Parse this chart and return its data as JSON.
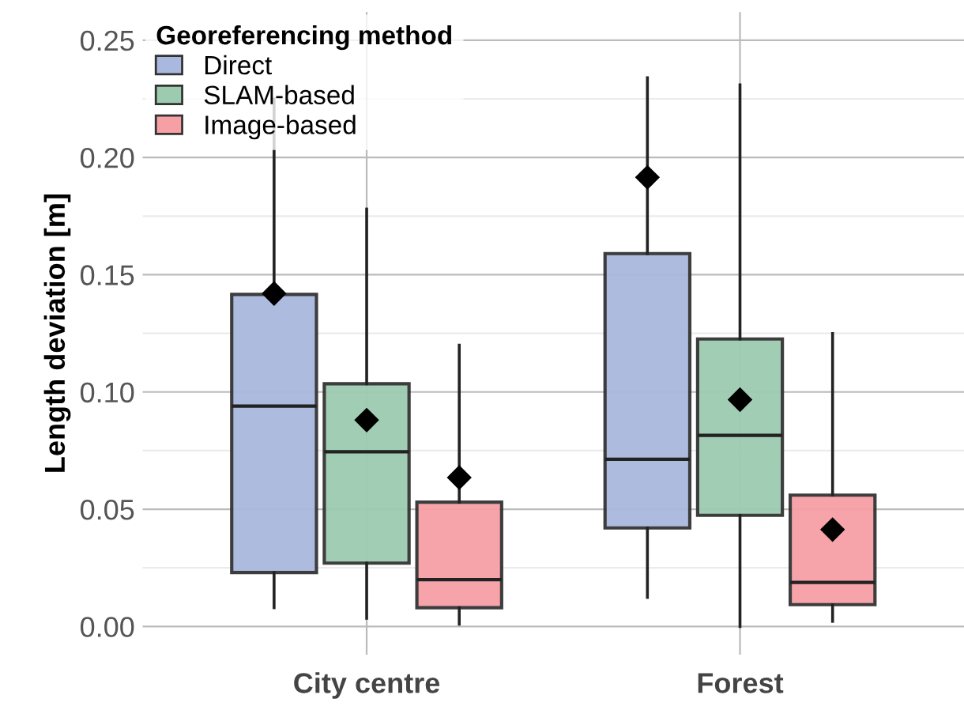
{
  "chart_data": {
    "type": "box",
    "ylabel": "Length deviation [m]",
    "legend_title": "Georeferencing method",
    "categories": [
      "City centre",
      "Forest"
    ],
    "ylim": [
      -0.012,
      0.262
    ],
    "yticks": [
      {
        "value": 0,
        "label": "0.00"
      },
      {
        "value": 0.05,
        "label": "0.05"
      },
      {
        "value": 0.1,
        "label": "0.10"
      },
      {
        "value": 0.15,
        "label": "0.15"
      },
      {
        "value": 0.2,
        "label": "0.20"
      },
      {
        "value": 0.25,
        "label": "0.25"
      }
    ],
    "grid": true,
    "legend": "top left",
    "marker": "diamond",
    "series": [
      {
        "name": "Direct",
        "color": "#a9b8de",
        "boxes": [
          {
            "low": 0.008,
            "q1": 0.023,
            "median": 0.094,
            "q3": 0.1416,
            "high": 0.225,
            "mean": 0.142
          },
          {
            "low": 0.0124,
            "q1": 0.042,
            "median": 0.0713,
            "q3": 0.159,
            "high": 0.234,
            "mean": 0.1915
          }
        ]
      },
      {
        "name": "SLAM-based",
        "color": "#9ccbb0",
        "boxes": [
          {
            "low": 0.0035,
            "q1": 0.027,
            "median": 0.0745,
            "q3": 0.1035,
            "high": 0.178,
            "mean": 0.088
          },
          {
            "low": 0.0,
            "q1": 0.0474,
            "median": 0.0815,
            "q3": 0.1226,
            "high": 0.231,
            "mean": 0.0967
          }
        ]
      },
      {
        "name": "Image-based",
        "color": "#f6a0a6",
        "boxes": [
          {
            "low": 0.001,
            "q1": 0.008,
            "median": 0.02,
            "q3": 0.053,
            "high": 0.12,
            "mean": 0.0635
          },
          {
            "low": 0.0022,
            "q1": 0.0093,
            "median": 0.0188,
            "q3": 0.056,
            "high": 0.1249,
            "mean": 0.0413
          }
        ]
      }
    ]
  }
}
